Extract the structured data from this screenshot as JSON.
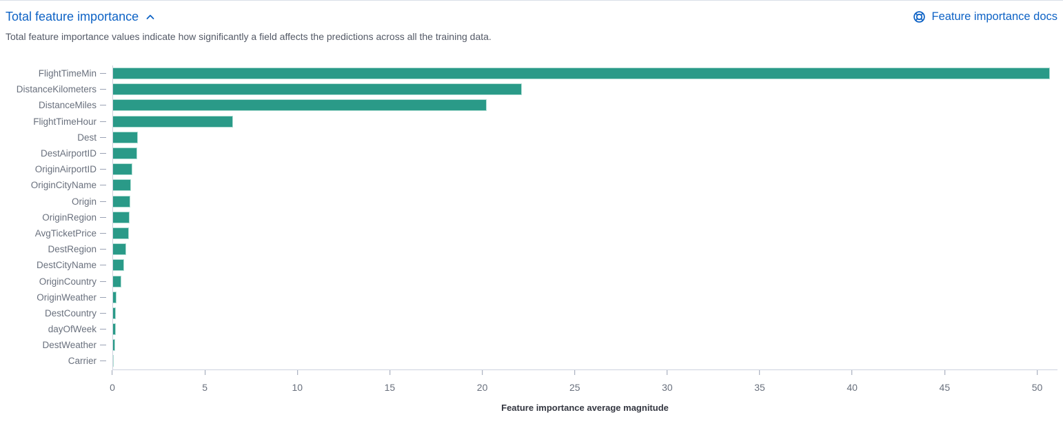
{
  "header": {
    "title": "Total feature importance",
    "docs_link_label": "Feature importance docs",
    "subtitle": "Total feature importance values indicate how significantly a field affects the predictions across all the training data."
  },
  "colors": {
    "link_blue": "#0d62c5",
    "bar_fill": "#2a9a88",
    "bar_stroke": "#aeddd3",
    "axis_line": "#ccd2de",
    "tick_mark": "#98a1b3",
    "axis_text": "#69707d",
    "subtitle_text": "#535966",
    "axis_title_text": "#343741"
  },
  "icons": {
    "collapse": "chevron-up-icon",
    "docs": "lifebuoy-help-icon"
  },
  "chart_data": {
    "type": "bar",
    "orientation": "horizontal",
    "title": "",
    "xlabel": "Feature importance average magnitude",
    "ylabel": "",
    "xlim": [
      0,
      51.1
    ],
    "xticks": [
      0,
      5,
      10,
      15,
      20,
      25,
      30,
      35,
      40,
      45,
      50
    ],
    "grid": false,
    "legend": false,
    "categories": [
      "FlightTimeMin",
      "DistanceKilometers",
      "DistanceMiles",
      "FlightTimeHour",
      "Dest",
      "DestAirportID",
      "OriginAirportID",
      "OriginCityName",
      "Origin",
      "OriginRegion",
      "AvgTicketPrice",
      "DestRegion",
      "DestCityName",
      "OriginCountry",
      "OriginWeather",
      "DestCountry",
      "dayOfWeek",
      "DestWeather",
      "Carrier"
    ],
    "values": [
      50.7,
      22.1,
      20.2,
      6.5,
      1.35,
      1.3,
      1.05,
      0.97,
      0.94,
      0.9,
      0.85,
      0.7,
      0.6,
      0.45,
      0.19,
      0.16,
      0.15,
      0.12,
      0.05
    ]
  }
}
